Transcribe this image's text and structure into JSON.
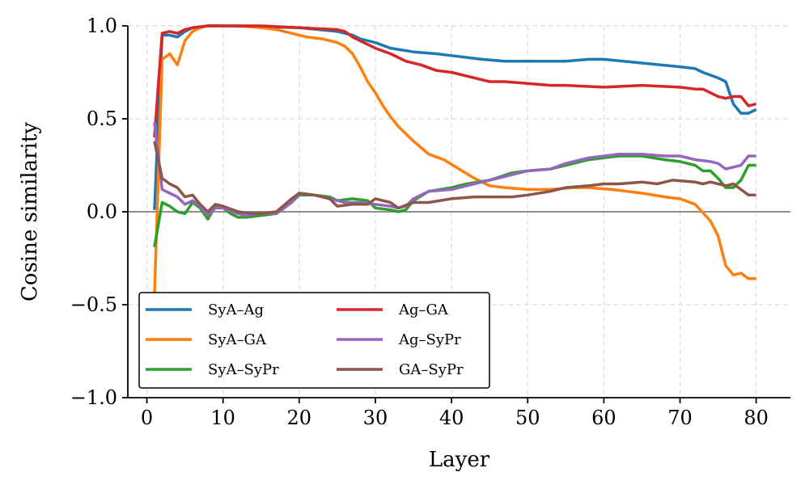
{
  "chart_data": {
    "type": "line",
    "title": "",
    "xlabel": "Layer",
    "ylabel": "Cosine similarity",
    "xlim": [
      -2.5,
      84.5
    ],
    "ylim": [
      -1.0,
      1.0
    ],
    "xticks": [
      0,
      10,
      20,
      30,
      40,
      50,
      60,
      70,
      80
    ],
    "yticks": [
      -1.0,
      -0.5,
      0.0,
      0.5,
      1.0
    ],
    "xtick_labels": [
      "0",
      "10",
      "20",
      "30",
      "40",
      "50",
      "60",
      "70",
      "80"
    ],
    "ytick_labels": [
      "−1.0",
      "−0.5",
      "0.0",
      "0.5",
      "1.0"
    ],
    "grid": true,
    "zero_line": true,
    "legend_position": "lower-left",
    "series": [
      {
        "name": "SyA–Ag",
        "color": "#1f77b4",
        "points": [
          [
            1,
            0.01
          ],
          [
            2,
            0.95
          ],
          [
            3,
            0.95
          ],
          [
            4,
            0.94
          ],
          [
            5,
            0.97
          ],
          [
            6,
            0.99
          ],
          [
            8,
            1.0
          ],
          [
            10,
            1.0
          ],
          [
            20,
            0.99
          ],
          [
            25,
            0.97
          ],
          [
            26,
            0.96
          ],
          [
            27,
            0.95
          ],
          [
            28,
            0.93
          ],
          [
            30,
            0.91
          ],
          [
            32,
            0.88
          ],
          [
            35,
            0.86
          ],
          [
            38,
            0.85
          ],
          [
            40,
            0.84
          ],
          [
            44,
            0.82
          ],
          [
            47,
            0.81
          ],
          [
            50,
            0.81
          ],
          [
            55,
            0.81
          ],
          [
            58,
            0.82
          ],
          [
            60,
            0.82
          ],
          [
            65,
            0.8
          ],
          [
            70,
            0.78
          ],
          [
            72,
            0.77
          ],
          [
            73,
            0.75
          ],
          [
            75,
            0.72
          ],
          [
            76,
            0.7
          ],
          [
            77,
            0.58
          ],
          [
            78,
            0.53
          ],
          [
            79,
            0.53
          ],
          [
            80,
            0.55
          ]
        ]
      },
      {
        "name": "SyA–GA",
        "color": "#ff7f0e",
        "points": [
          [
            1,
            -0.45
          ],
          [
            2,
            0.82
          ],
          [
            3,
            0.85
          ],
          [
            4,
            0.79
          ],
          [
            5,
            0.92
          ],
          [
            6,
            0.97
          ],
          [
            7,
            0.99
          ],
          [
            8,
            1.0
          ],
          [
            12,
            1.0
          ],
          [
            15,
            0.99
          ],
          [
            17,
            0.98
          ],
          [
            19,
            0.96
          ],
          [
            21,
            0.94
          ],
          [
            23,
            0.93
          ],
          [
            25,
            0.91
          ],
          [
            26,
            0.89
          ],
          [
            27,
            0.85
          ],
          [
            28,
            0.78
          ],
          [
            29,
            0.7
          ],
          [
            30,
            0.64
          ],
          [
            31,
            0.57
          ],
          [
            32,
            0.51
          ],
          [
            33,
            0.46
          ],
          [
            35,
            0.38
          ],
          [
            37,
            0.31
          ],
          [
            39,
            0.28
          ],
          [
            41,
            0.23
          ],
          [
            43,
            0.18
          ],
          [
            45,
            0.14
          ],
          [
            47,
            0.13
          ],
          [
            50,
            0.12
          ],
          [
            53,
            0.12
          ],
          [
            56,
            0.13
          ],
          [
            58,
            0.13
          ],
          [
            61,
            0.12
          ],
          [
            63,
            0.11
          ],
          [
            65,
            0.1
          ],
          [
            68,
            0.08
          ],
          [
            70,
            0.07
          ],
          [
            72,
            0.04
          ],
          [
            74,
            -0.05
          ],
          [
            75,
            -0.13
          ],
          [
            76,
            -0.29
          ],
          [
            77,
            -0.34
          ],
          [
            78,
            -0.33
          ],
          [
            79,
            -0.36
          ],
          [
            80,
            -0.36
          ]
        ]
      },
      {
        "name": "SyA–SyPr",
        "color": "#2ca02c",
        "points": [
          [
            1,
            -0.19
          ],
          [
            2,
            0.05
          ],
          [
            3,
            0.03
          ],
          [
            4,
            0.0
          ],
          [
            5,
            -0.01
          ],
          [
            6,
            0.05
          ],
          [
            7,
            0.02
          ],
          [
            8,
            -0.04
          ],
          [
            9,
            0.03
          ],
          [
            10,
            0.02
          ],
          [
            11,
            -0.01
          ],
          [
            12,
            -0.03
          ],
          [
            13,
            -0.03
          ],
          [
            15,
            -0.02
          ],
          [
            17,
            -0.01
          ],
          [
            19,
            0.05
          ],
          [
            20,
            0.09
          ],
          [
            22,
            0.09
          ],
          [
            24,
            0.08
          ],
          [
            25,
            0.06
          ],
          [
            27,
            0.07
          ],
          [
            29,
            0.06
          ],
          [
            30,
            0.02
          ],
          [
            32,
            0.01
          ],
          [
            33,
            0.0
          ],
          [
            34,
            0.01
          ],
          [
            35,
            0.06
          ],
          [
            37,
            0.11
          ],
          [
            40,
            0.13
          ],
          [
            42,
            0.15
          ],
          [
            45,
            0.17
          ],
          [
            48,
            0.21
          ],
          [
            50,
            0.22
          ],
          [
            53,
            0.23
          ],
          [
            55,
            0.25
          ],
          [
            58,
            0.28
          ],
          [
            60,
            0.29
          ],
          [
            62,
            0.3
          ],
          [
            65,
            0.3
          ],
          [
            68,
            0.28
          ],
          [
            70,
            0.27
          ],
          [
            72,
            0.25
          ],
          [
            73,
            0.22
          ],
          [
            74,
            0.22
          ],
          [
            75,
            0.18
          ],
          [
            76,
            0.13
          ],
          [
            77,
            0.13
          ],
          [
            78,
            0.17
          ],
          [
            79,
            0.25
          ],
          [
            80,
            0.25
          ]
        ]
      },
      {
        "name": "Ag–GA",
        "color": "#d62728",
        "points": [
          [
            1,
            0.4
          ],
          [
            2,
            0.96
          ],
          [
            3,
            0.97
          ],
          [
            4,
            0.96
          ],
          [
            5,
            0.98
          ],
          [
            6,
            0.99
          ],
          [
            8,
            1.0
          ],
          [
            10,
            1.0
          ],
          [
            15,
            1.0
          ],
          [
            20,
            0.99
          ],
          [
            25,
            0.98
          ],
          [
            26,
            0.97
          ],
          [
            27,
            0.94
          ],
          [
            28,
            0.92
          ],
          [
            30,
            0.88
          ],
          [
            32,
            0.85
          ],
          [
            34,
            0.81
          ],
          [
            36,
            0.79
          ],
          [
            38,
            0.76
          ],
          [
            40,
            0.75
          ],
          [
            42,
            0.73
          ],
          [
            44,
            0.71
          ],
          [
            45,
            0.7
          ],
          [
            47,
            0.7
          ],
          [
            50,
            0.69
          ],
          [
            53,
            0.68
          ],
          [
            55,
            0.68
          ],
          [
            60,
            0.67
          ],
          [
            65,
            0.68
          ],
          [
            70,
            0.67
          ],
          [
            72,
            0.66
          ],
          [
            73,
            0.66
          ],
          [
            75,
            0.62
          ],
          [
            76,
            0.61
          ],
          [
            77,
            0.62
          ],
          [
            78,
            0.62
          ],
          [
            79,
            0.57
          ],
          [
            80,
            0.58
          ]
        ]
      },
      {
        "name": "Ag–SyPr",
        "color": "#9467bd",
        "points": [
          [
            1,
            0.48
          ],
          [
            2,
            0.12
          ],
          [
            3,
            0.1
          ],
          [
            4,
            0.08
          ],
          [
            5,
            0.04
          ],
          [
            6,
            0.06
          ],
          [
            7,
            0.03
          ],
          [
            8,
            -0.02
          ],
          [
            9,
            0.02
          ],
          [
            10,
            0.02
          ],
          [
            12,
            -0.01
          ],
          [
            13,
            -0.02
          ],
          [
            15,
            -0.01
          ],
          [
            17,
            -0.01
          ],
          [
            19,
            0.05
          ],
          [
            20,
            0.1
          ],
          [
            22,
            0.09
          ],
          [
            24,
            0.07
          ],
          [
            26,
            0.05
          ],
          [
            28,
            0.05
          ],
          [
            30,
            0.04
          ],
          [
            32,
            0.03
          ],
          [
            33,
            0.02
          ],
          [
            34,
            0.03
          ],
          [
            35,
            0.07
          ],
          [
            37,
            0.11
          ],
          [
            40,
            0.12
          ],
          [
            42,
            0.14
          ],
          [
            45,
            0.17
          ],
          [
            48,
            0.2
          ],
          [
            50,
            0.22
          ],
          [
            53,
            0.23
          ],
          [
            55,
            0.26
          ],
          [
            58,
            0.29
          ],
          [
            60,
            0.3
          ],
          [
            62,
            0.31
          ],
          [
            65,
            0.31
          ],
          [
            68,
            0.3
          ],
          [
            70,
            0.3
          ],
          [
            72,
            0.28
          ],
          [
            74,
            0.27
          ],
          [
            75,
            0.26
          ],
          [
            76,
            0.23
          ],
          [
            77,
            0.24
          ],
          [
            78,
            0.25
          ],
          [
            79,
            0.3
          ],
          [
            80,
            0.3
          ]
        ]
      },
      {
        "name": "GA–SyPr",
        "color": "#8c564b",
        "points": [
          [
            1,
            0.38
          ],
          [
            2,
            0.18
          ],
          [
            3,
            0.15
          ],
          [
            4,
            0.13
          ],
          [
            5,
            0.08
          ],
          [
            6,
            0.09
          ],
          [
            7,
            0.04
          ],
          [
            8,
            0.0
          ],
          [
            9,
            0.04
          ],
          [
            10,
            0.03
          ],
          [
            12,
            0.0
          ],
          [
            14,
            -0.01
          ],
          [
            15,
            -0.01
          ],
          [
            17,
            0.0
          ],
          [
            19,
            0.07
          ],
          [
            20,
            0.1
          ],
          [
            22,
            0.09
          ],
          [
            24,
            0.07
          ],
          [
            25,
            0.03
          ],
          [
            27,
            0.04
          ],
          [
            29,
            0.04
          ],
          [
            30,
            0.07
          ],
          [
            32,
            0.05
          ],
          [
            33,
            0.02
          ],
          [
            35,
            0.05
          ],
          [
            37,
            0.05
          ],
          [
            40,
            0.07
          ],
          [
            43,
            0.08
          ],
          [
            45,
            0.08
          ],
          [
            48,
            0.08
          ],
          [
            50,
            0.09
          ],
          [
            53,
            0.11
          ],
          [
            55,
            0.13
          ],
          [
            58,
            0.14
          ],
          [
            60,
            0.15
          ],
          [
            62,
            0.15
          ],
          [
            65,
            0.16
          ],
          [
            67,
            0.15
          ],
          [
            69,
            0.17
          ],
          [
            72,
            0.16
          ],
          [
            73,
            0.15
          ],
          [
            74,
            0.16
          ],
          [
            76,
            0.14
          ],
          [
            77,
            0.15
          ],
          [
            78,
            0.12
          ],
          [
            79,
            0.09
          ],
          [
            80,
            0.09
          ]
        ]
      }
    ]
  }
}
